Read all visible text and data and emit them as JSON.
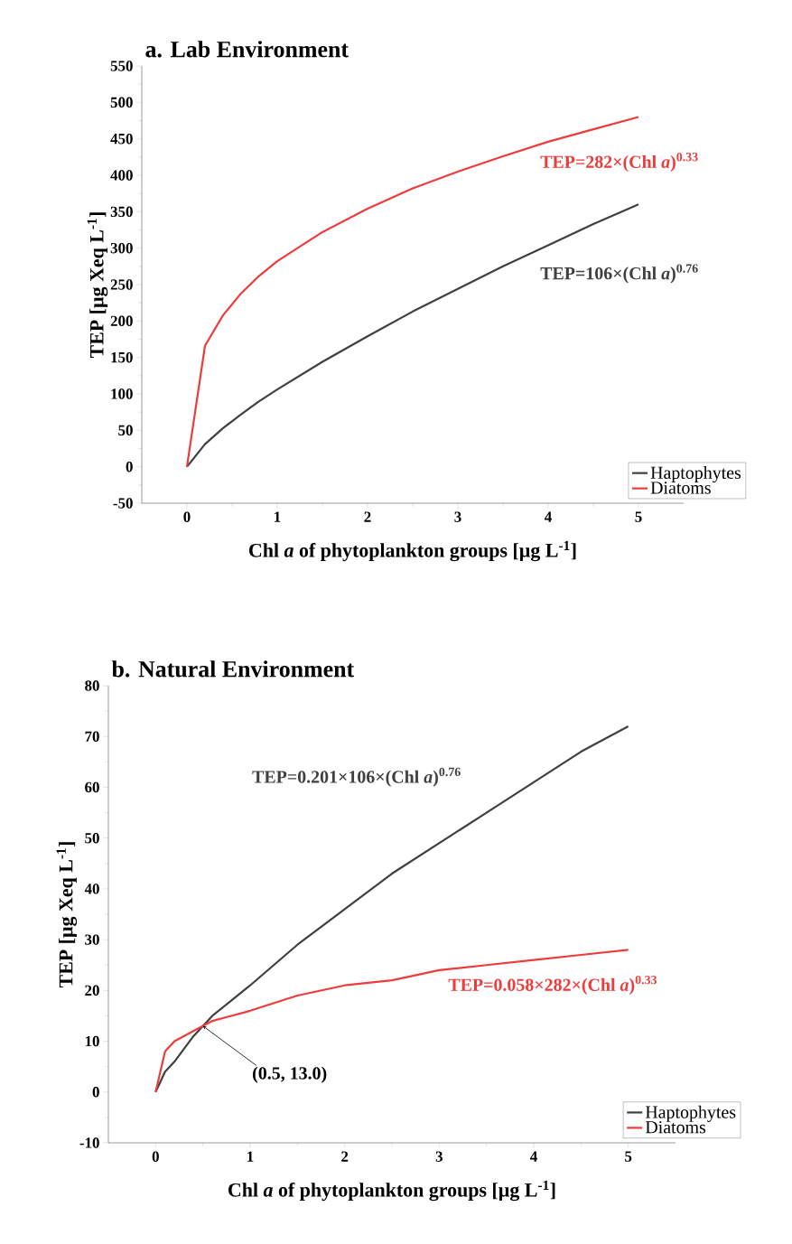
{
  "chart_data": [
    {
      "type": "line",
      "title": "a. Lab Environment",
      "xlabel": "Chl *a* of phytoplankton groups [µg L$^{-1}$]",
      "ylabel": "TEP [µg Xeq L$^{-1}$]",
      "x": [
        0,
        0.2,
        0.4,
        0.6,
        0.8,
        1,
        1.5,
        2,
        2.5,
        3,
        3.5,
        4,
        4.5,
        5
      ],
      "series": [
        {
          "name": "Haptophytes",
          "color": "#404040",
          "values": [
            0,
            31,
            53,
            72,
            90,
            106,
            144,
            179,
            213,
            244,
            275,
            304,
            333,
            360
          ]
        },
        {
          "name": "Diatoms",
          "color": "#ee3b3b",
          "values": [
            0,
            166,
            208,
            238,
            262,
            282,
            322,
            354,
            382,
            405,
            426,
            446,
            463,
            480
          ]
        }
      ],
      "xlim": [
        -0.5,
        5.5
      ],
      "xticks": [
        0,
        1,
        2,
        3,
        4,
        5
      ],
      "ylim": [
        -50,
        550
      ],
      "yticks": [
        -50,
        0,
        50,
        100,
        150,
        200,
        250,
        300,
        350,
        400,
        450,
        500,
        550
      ],
      "legend": "bottom right",
      "grid": false,
      "marker": "none",
      "line_style": "solid",
      "annotations": [
        "TEP=282×(Chl *a*)$^{0.33}$",
        "TEP=106×(Chl *a*)$^{0.76}$"
      ]
    },
    {
      "type": "line",
      "title": "b. Natural Environment",
      "xlabel": "Chl *a* of phytoplankton groups [µg L$^{-1}$]",
      "ylabel": "TEP [µg Xeq L$^{-1}$]",
      "x": [
        0,
        0.1,
        0.2,
        0.4,
        0.6,
        0.8,
        1,
        1.5,
        2,
        2.5,
        3,
        3.5,
        4,
        4.5,
        5
      ],
      "series": [
        {
          "name": "Haptophytes",
          "color": "#404040",
          "values": [
            0,
            4,
            6,
            11,
            15,
            18,
            21,
            29,
            36,
            43,
            49,
            55,
            61,
            67,
            72
          ]
        },
        {
          "name": "Diatoms",
          "color": "#ee3b3b",
          "values": [
            0,
            8,
            10,
            12,
            14,
            15,
            16,
            19,
            21,
            22,
            24,
            25,
            26,
            27,
            28
          ]
        }
      ],
      "xlim": [
        -0.5,
        5.5
      ],
      "xticks": [
        0,
        1,
        2,
        3,
        4,
        5
      ],
      "ylim": [
        -10,
        80
      ],
      "yticks": [
        -10,
        0,
        10,
        20,
        30,
        40,
        50,
        60,
        70,
        80
      ],
      "legend": "bottom right",
      "grid": false,
      "marker": "none",
      "line_style": "solid",
      "annotations": [
        "TEP=0.201×106×(Chl *a*)$^{0.76}$",
        "TEP=0.058×282×(Chl *a*)$^{0.33}$",
        {
          "text": "(0.5, 13.0)",
          "x": 0.5,
          "y": 13.0
        }
      ]
    }
  ]
}
